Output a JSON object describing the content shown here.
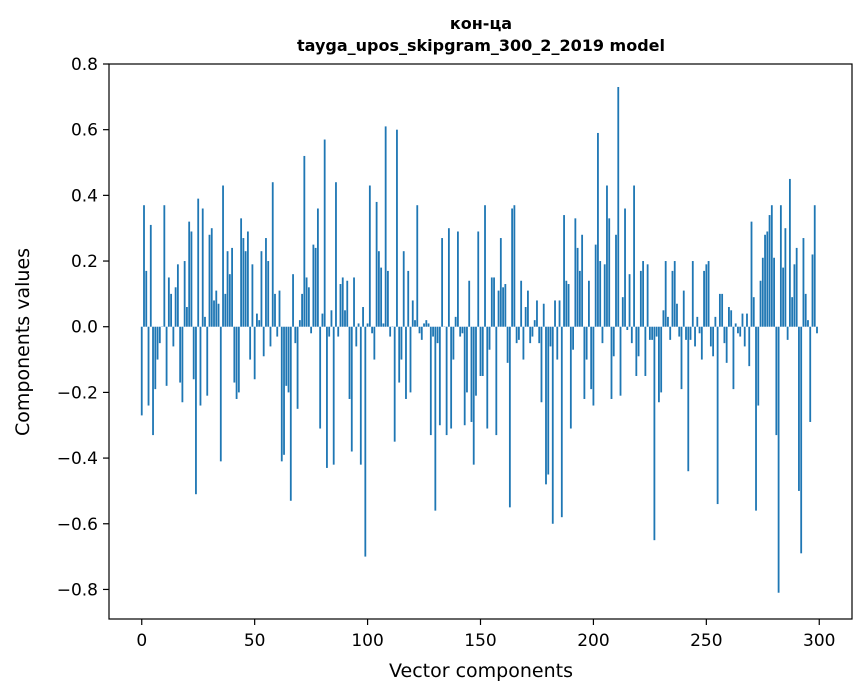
{
  "chart_data": {
    "type": "bar",
    "title": "кон-ца",
    "subtitle": "tayga_upos_skipgram_300_2_2019 model",
    "xlabel": "Vector components",
    "ylabel": "Components values",
    "xlim": [
      -14.5,
      314.5
    ],
    "ylim": [
      -0.89,
      0.8
    ],
    "xticks": [
      0,
      50,
      100,
      150,
      200,
      250,
      300
    ],
    "xtick_labels": [
      "0",
      "50",
      "100",
      "150",
      "200",
      "250",
      "300"
    ],
    "yticks": [
      -0.8,
      -0.6,
      -0.4,
      -0.2,
      0.0,
      0.2,
      0.4,
      0.6,
      0.8
    ],
    "ytick_labels": [
      "−0.8",
      "−0.6",
      "−0.4",
      "−0.2",
      "0.0",
      "0.2",
      "0.4",
      "0.6",
      "0.8"
    ],
    "grid": false,
    "legend": "none",
    "bar_color": "#1f77b4",
    "x": [
      0,
      1,
      2,
      3,
      4,
      5,
      6,
      7,
      8,
      9,
      10,
      11,
      12,
      13,
      14,
      15,
      16,
      17,
      18,
      19,
      20,
      21,
      22,
      23,
      24,
      25,
      26,
      27,
      28,
      29,
      30,
      31,
      32,
      33,
      34,
      35,
      36,
      37,
      38,
      39,
      40,
      41,
      42,
      43,
      44,
      45,
      46,
      47,
      48,
      49,
      50,
      51,
      52,
      53,
      54,
      55,
      56,
      57,
      58,
      59,
      60,
      61,
      62,
      63,
      64,
      65,
      66,
      67,
      68,
      69,
      70,
      71,
      72,
      73,
      74,
      75,
      76,
      77,
      78,
      79,
      80,
      81,
      82,
      83,
      84,
      85,
      86,
      87,
      88,
      89,
      90,
      91,
      92,
      93,
      94,
      95,
      96,
      97,
      98,
      99,
      100,
      101,
      102,
      103,
      104,
      105,
      106,
      107,
      108,
      109,
      110,
      111,
      112,
      113,
      114,
      115,
      116,
      117,
      118,
      119,
      120,
      121,
      122,
      123,
      124,
      125,
      126,
      127,
      128,
      129,
      130,
      131,
      132,
      133,
      134,
      135,
      136,
      137,
      138,
      139,
      140,
      141,
      142,
      143,
      144,
      145,
      146,
      147,
      148,
      149,
      150,
      151,
      152,
      153,
      154,
      155,
      156,
      157,
      158,
      159,
      160,
      161,
      162,
      163,
      164,
      165,
      166,
      167,
      168,
      169,
      170,
      171,
      172,
      173,
      174,
      175,
      176,
      177,
      178,
      179,
      180,
      181,
      182,
      183,
      184,
      185,
      186,
      187,
      188,
      189,
      190,
      191,
      192,
      193,
      194,
      195,
      196,
      197,
      198,
      199,
      200,
      201,
      202,
      203,
      204,
      205,
      206,
      207,
      208,
      209,
      210,
      211,
      212,
      213,
      214,
      215,
      216,
      217,
      218,
      219,
      220,
      221,
      222,
      223,
      224,
      225,
      226,
      227,
      228,
      229,
      230,
      231,
      232,
      233,
      234,
      235,
      236,
      237,
      238,
      239,
      240,
      241,
      242,
      243,
      244,
      245,
      246,
      247,
      248,
      249,
      250,
      251,
      252,
      253,
      254,
      255,
      256,
      257,
      258,
      259,
      260,
      261,
      262,
      263,
      264,
      265,
      266,
      267,
      268,
      269,
      270,
      271,
      272,
      273,
      274,
      275,
      276,
      277,
      278,
      279,
      280,
      281,
      282,
      283,
      284,
      285,
      286,
      287,
      288,
      289,
      290,
      291,
      292,
      293,
      294,
      295,
      296,
      297,
      298,
      299
    ],
    "values": [
      -0.27,
      0.37,
      0.17,
      -0.24,
      0.31,
      -0.33,
      -0.19,
      -0.1,
      -0.05,
      0.0,
      0.37,
      -0.18,
      0.15,
      0.1,
      -0.06,
      0.12,
      0.19,
      -0.17,
      -0.23,
      0.2,
      0.06,
      0.32,
      0.29,
      -0.16,
      -0.51,
      0.39,
      -0.24,
      0.36,
      0.03,
      -0.21,
      0.28,
      0.3,
      0.08,
      0.11,
      0.07,
      -0.41,
      0.43,
      0.1,
      0.23,
      0.16,
      0.24,
      -0.17,
      -0.22,
      -0.2,
      0.33,
      0.27,
      0.23,
      0.29,
      -0.1,
      0.19,
      -0.16,
      0.04,
      0.02,
      0.23,
      -0.09,
      0.27,
      0.2,
      -0.06,
      0.44,
      0.1,
      -0.03,
      0.11,
      -0.41,
      -0.39,
      -0.18,
      -0.2,
      -0.53,
      0.16,
      -0.05,
      -0.25,
      0.02,
      0.1,
      0.52,
      0.15,
      0.12,
      -0.02,
      0.25,
      0.24,
      0.36,
      -0.31,
      0.04,
      0.57,
      -0.43,
      -0.03,
      0.05,
      -0.42,
      0.44,
      -0.03,
      0.13,
      0.15,
      0.05,
      0.14,
      -0.22,
      -0.38,
      0.15,
      -0.06,
      0.01,
      -0.42,
      0.06,
      -0.7,
      0.01,
      0.43,
      -0.02,
      -0.1,
      0.38,
      0.23,
      0.18,
      0.01,
      0.61,
      0.17,
      -0.03,
      0.0,
      -0.35,
      0.6,
      -0.17,
      -0.1,
      0.23,
      -0.22,
      0.17,
      -0.2,
      0.08,
      0.02,
      0.37,
      -0.02,
      -0.04,
      0.01,
      0.02,
      0.01,
      -0.33,
      -0.03,
      -0.56,
      -0.05,
      -0.3,
      0.27,
      0.0,
      -0.33,
      0.3,
      -0.31,
      -0.1,
      0.03,
      0.29,
      -0.03,
      -0.02,
      -0.3,
      -0.2,
      0.14,
      -0.29,
      -0.42,
      -0.21,
      0.29,
      -0.15,
      -0.15,
      0.37,
      -0.31,
      -0.07,
      0.15,
      0.15,
      -0.33,
      0.11,
      0.27,
      0.12,
      0.13,
      -0.11,
      -0.55,
      0.36,
      0.37,
      -0.05,
      -0.04,
      0.14,
      -0.1,
      0.06,
      0.11,
      -0.05,
      -0.03,
      0.02,
      0.08,
      -0.05,
      -0.23,
      0.07,
      -0.48,
      -0.45,
      -0.06,
      -0.6,
      0.08,
      -0.1,
      0.08,
      -0.58,
      0.34,
      0.14,
      0.13,
      -0.31,
      -0.07,
      0.33,
      0.24,
      0.17,
      0.28,
      -0.22,
      -0.1,
      0.14,
      -0.19,
      -0.24,
      0.25,
      0.59,
      0.2,
      -0.05,
      0.19,
      0.43,
      0.33,
      -0.22,
      -0.09,
      0.28,
      0.73,
      -0.21,
      0.09,
      0.36,
      -0.01,
      0.16,
      -0.05,
      0.43,
      -0.15,
      -0.09,
      0.17,
      0.2,
      -0.15,
      0.19,
      -0.04,
      -0.04,
      -0.65,
      -0.03,
      -0.23,
      -0.2,
      0.05,
      0.2,
      0.03,
      -0.04,
      0.17,
      0.2,
      0.07,
      -0.03,
      -0.19,
      0.11,
      -0.04,
      -0.44,
      -0.04,
      0.2,
      -0.06,
      0.03,
      -0.02,
      -0.1,
      0.17,
      0.19,
      0.2,
      -0.06,
      -0.09,
      0.03,
      -0.54,
      0.1,
      0.1,
      -0.05,
      -0.11,
      0.06,
      0.05,
      -0.19,
      0.01,
      -0.02,
      -0.03,
      0.04,
      -0.06,
      0.04,
      -0.12,
      0.32,
      0.09,
      -0.56,
      -0.24,
      0.14,
      0.21,
      0.28,
      0.29,
      0.34,
      0.37,
      0.21,
      -0.33,
      -0.81,
      0.37,
      0.18,
      0.3,
      -0.04,
      0.45,
      0.09,
      0.19,
      0.24,
      -0.5,
      -0.69,
      0.27,
      0.1,
      0.02,
      -0.29,
      0.22,
      0.37,
      -0.02
    ]
  }
}
